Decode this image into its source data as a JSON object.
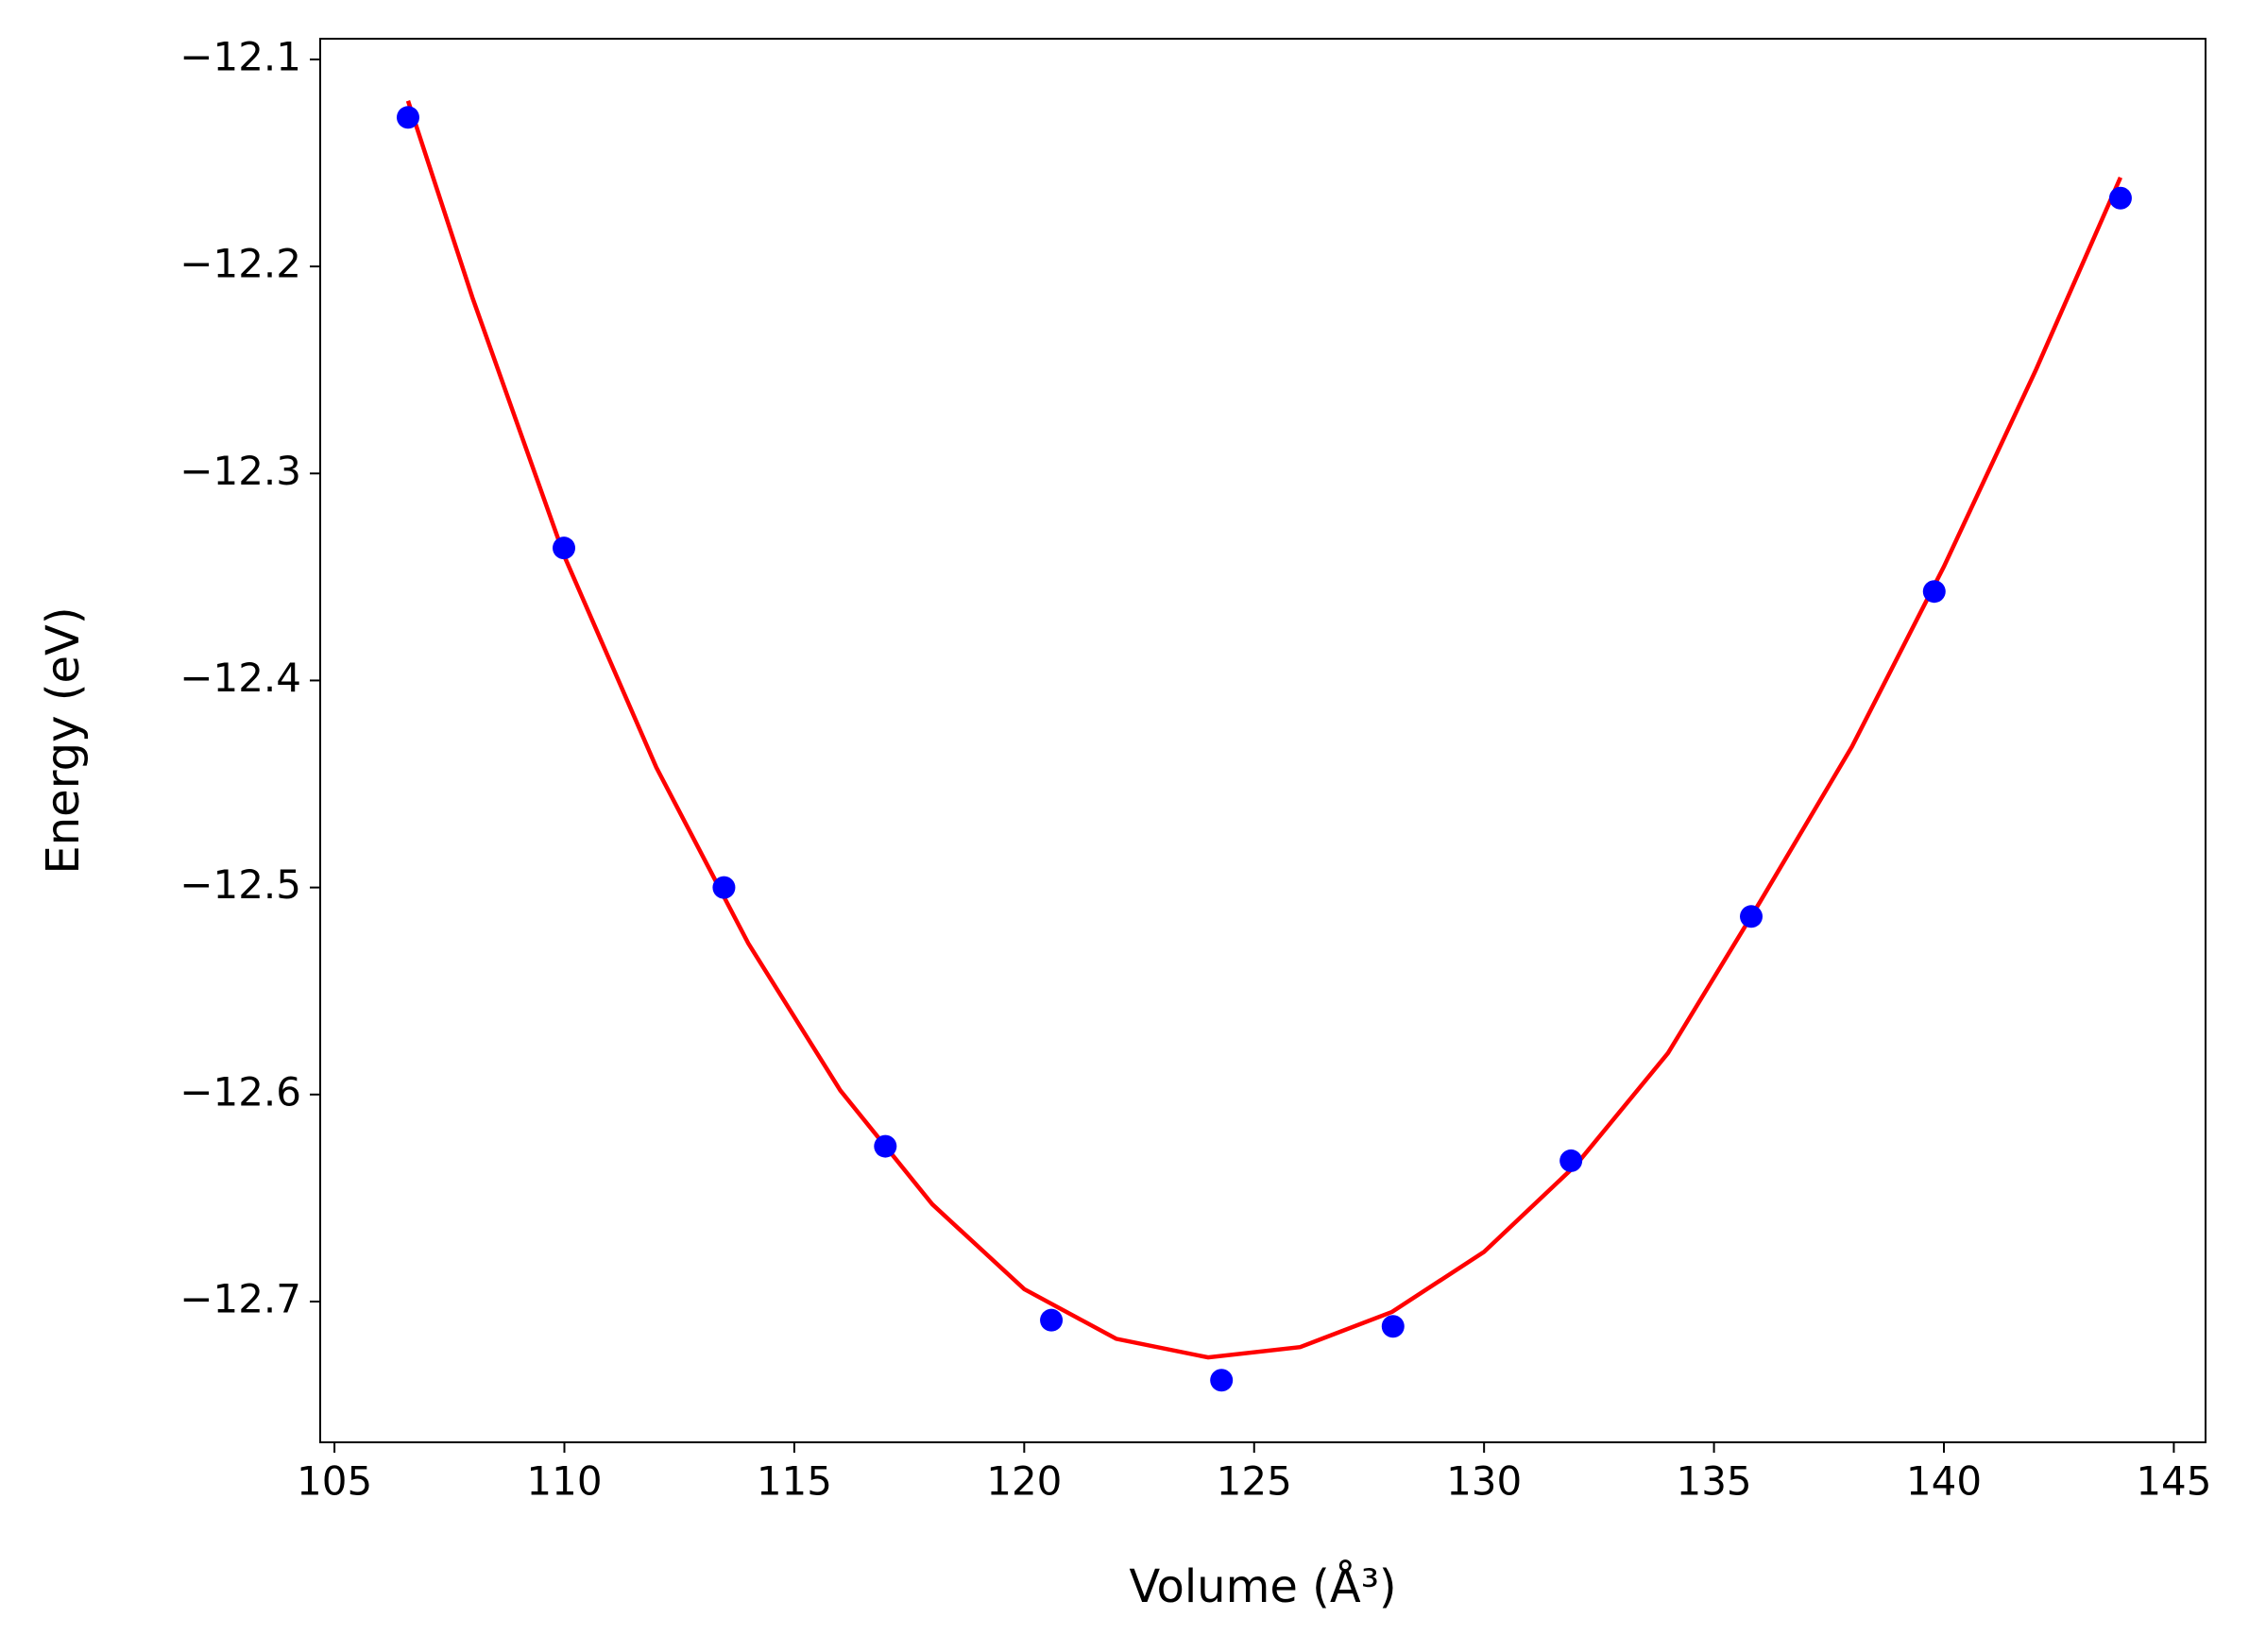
{
  "chart_data": {
    "type": "scatter",
    "xlabel": "Volume (Å³)",
    "ylabel": "Energy (eV)",
    "xlim": [
      104.69,
      145.69
    ],
    "ylim": [
      -12.768,
      -12.09
    ],
    "xticks": [
      105,
      110,
      115,
      120,
      125,
      130,
      135,
      140,
      145
    ],
    "yticks": [
      {
        "value": -12.1,
        "label": "−12.1"
      },
      {
        "value": -12.2,
        "label": "−12.2"
      },
      {
        "value": -12.3,
        "label": "−12.3"
      },
      {
        "value": -12.4,
        "label": "−12.4"
      },
      {
        "value": -12.5,
        "label": "−12.5"
      },
      {
        "value": -12.6,
        "label": "−12.6"
      },
      {
        "value": -12.7,
        "label": "−12.7"
      }
    ],
    "series": [
      {
        "style": "line",
        "color": "#ff0000",
        "x": [
          106.6,
          108,
          110,
          112,
          114,
          116,
          118,
          120,
          122,
          124,
          126,
          128,
          130,
          132,
          134,
          136,
          138,
          140,
          142,
          143.84
        ],
        "values": [
          -12.12,
          -12.215,
          -12.34,
          -12.442,
          -12.527,
          -12.598,
          -12.653,
          -12.694,
          -12.718,
          -12.727,
          -12.722,
          -12.705,
          -12.676,
          -12.634,
          -12.58,
          -12.507,
          -12.432,
          -12.345,
          -12.25,
          -12.157
        ]
      },
      {
        "style": "markers",
        "color": "#0000ff",
        "x": [
          106.6,
          109.99,
          113.47,
          116.98,
          120.59,
          124.29,
          128.02,
          131.89,
          135.81,
          139.79,
          143.84
        ],
        "values": [
          -12.128,
          -12.336,
          -12.5,
          -12.625,
          -12.709,
          -12.738,
          -12.712,
          -12.632,
          -12.514,
          -12.357,
          -12.167
        ]
      }
    ]
  }
}
